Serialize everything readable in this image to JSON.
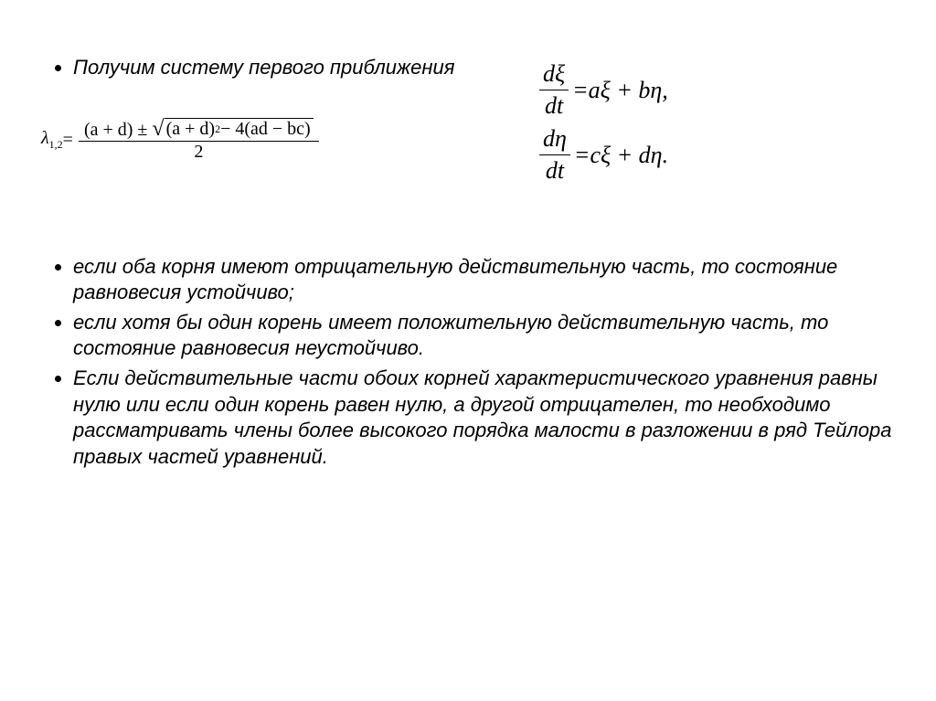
{
  "colors": {
    "background": "#ffffff",
    "text": "#000000",
    "rule": "#000000"
  },
  "typography": {
    "body_font": "Arial",
    "body_size_pt": 17,
    "body_style": "italic",
    "math_font": "Times New Roman",
    "math_size_pt": 20
  },
  "bullets": {
    "b1": "Получим систему первого приближения",
    "b2": "если оба корня имеют отрицательную действительную часть, то состояние равновесия устойчиво;",
    "b3": "если хотя бы один корень имеет положительную действительную часть, то состояние равновесия неустойчиво.",
    "b4": "Если действительные части обоих корней характеристического уравнения равны нулю или если один корень равен нулю, а другой отрицателен, то необходимо рассматривать члены более высокого порядка малости в разложении в ряд Тейлора правых частей уравнений."
  },
  "equations": {
    "lambda": {
      "lhs_symbol": "λ",
      "lhs_subscript": "1,2",
      "equals": " = ",
      "numerator_left": "(a + d) ± ",
      "radicand": "(a + d)",
      "radicand_sup": "2",
      "radicand_tail": " − 4(ad − bc)",
      "denominator": "2"
    },
    "system": {
      "eq1": {
        "num": "dξ",
        "den": "dt",
        "rhs": "=aξ + bη,"
      },
      "eq2": {
        "num": "dη",
        "den": "dt",
        "rhs": "=cξ + dη."
      }
    }
  }
}
